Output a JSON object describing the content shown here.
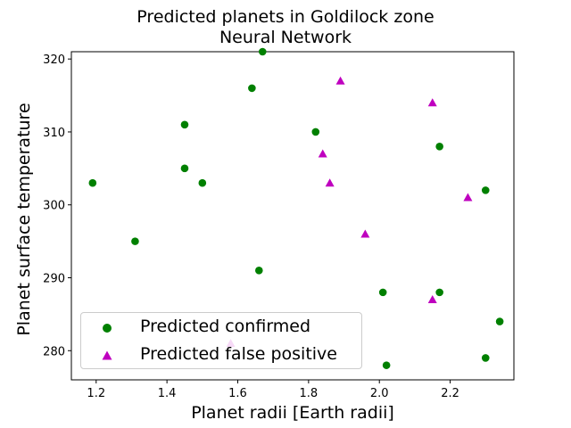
{
  "chart_data": {
    "type": "scatter",
    "title": "Predicted planets in Goldilock zone",
    "subtitle": "Neural Network",
    "xlabel": "Planet radii [Earth radii]",
    "ylabel": "Planet surface temperature",
    "xlim": [
      1.13,
      2.38
    ],
    "ylim": [
      276,
      321
    ],
    "xticks": [
      1.2,
      1.4,
      1.6,
      1.8,
      2.0,
      2.2
    ],
    "yticks": [
      280,
      290,
      300,
      310,
      320
    ],
    "legend_position": "lower-left",
    "series": [
      {
        "name": "Predicted confirmed",
        "marker": "circle",
        "color": "#008000",
        "points": [
          [
            1.19,
            303
          ],
          [
            1.31,
            295
          ],
          [
            1.45,
            311
          ],
          [
            1.45,
            305
          ],
          [
            1.5,
            303
          ],
          [
            1.64,
            316
          ],
          [
            1.67,
            321
          ],
          [
            1.66,
            291
          ],
          [
            1.82,
            310
          ],
          [
            2.01,
            288
          ],
          [
            2.02,
            278
          ],
          [
            2.17,
            308
          ],
          [
            2.17,
            288
          ],
          [
            2.3,
            302
          ],
          [
            2.3,
            279
          ],
          [
            2.34,
            284
          ]
        ]
      },
      {
        "name": "Predicted false positive",
        "marker": "triangle",
        "color": "#bf00bf",
        "points": [
          [
            1.89,
            317
          ],
          [
            2.15,
            314
          ],
          [
            1.84,
            307
          ],
          [
            1.86,
            303
          ],
          [
            2.25,
            301
          ],
          [
            1.96,
            296
          ],
          [
            2.15,
            287
          ],
          [
            1.58,
            281
          ]
        ]
      }
    ]
  }
}
